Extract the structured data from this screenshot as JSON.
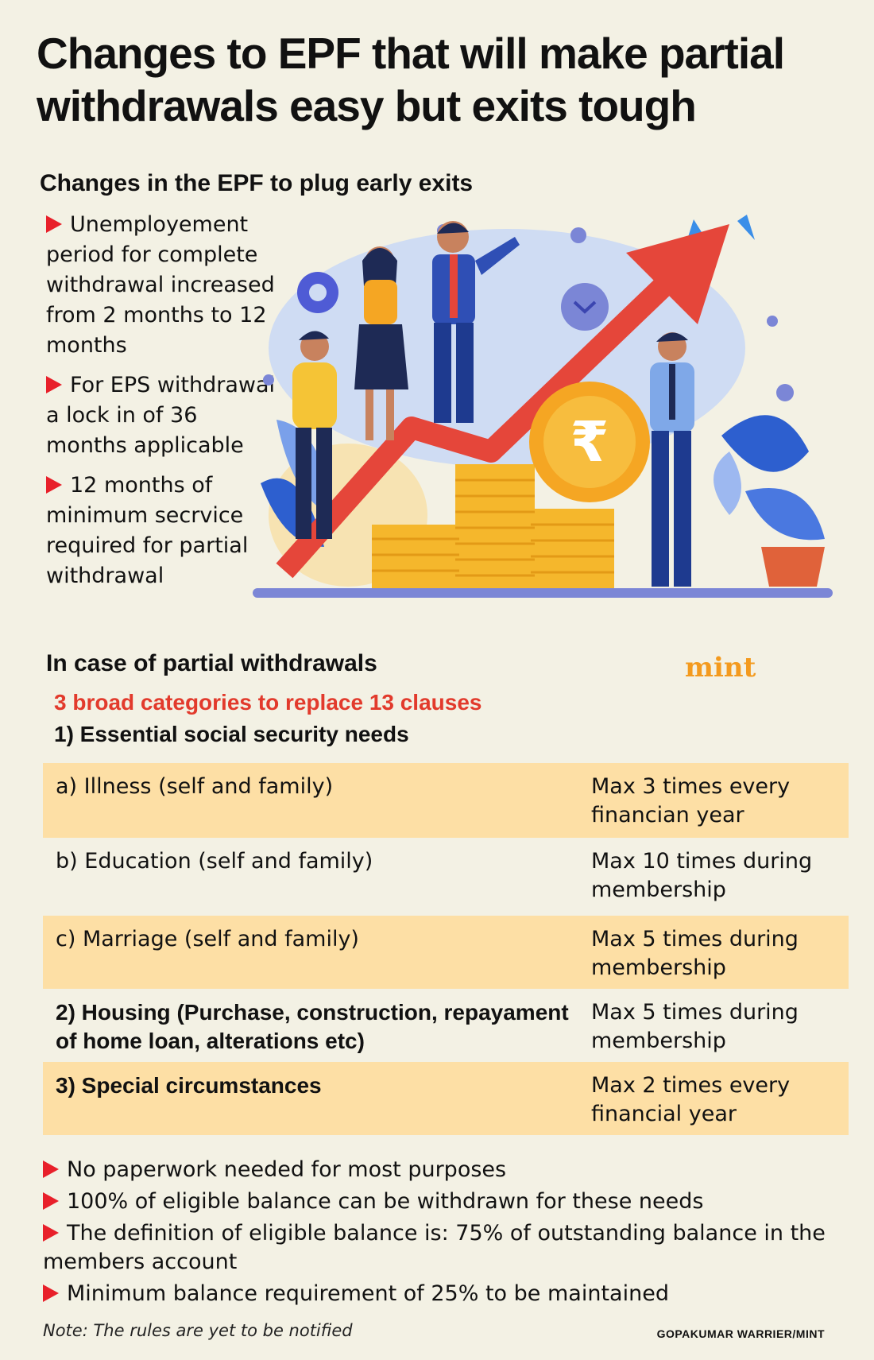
{
  "title": "Changes to EPF that will make partial withdrawals easy but exits tough",
  "section1": {
    "heading": "Changes in the EPF to plug early exits",
    "bullets": [
      "Unemployement period for complete withdrawal increased from 2 months to 12 months",
      "For EPS withdrawal a lock in of 36 months applicable",
      "12 months of minimum secrvice required for partial withdrawal"
    ]
  },
  "illustration": {
    "currency_symbol": "₹"
  },
  "logo": "mint",
  "section2": {
    "heading": "In case of partial withdrawals",
    "subheading": "3 broad categories to replace 13 clauses",
    "category1": "1) Essential social security needs",
    "rows": [
      {
        "label": "a) Illness (self and family)",
        "limit": "Max 3 times every financian year"
      },
      {
        "label": "b) Education (self and family)",
        "limit": "Max 10 times during membership"
      },
      {
        "label": "c) Marriage (self and family)",
        "limit": "Max 5 times during membership"
      },
      {
        "label": "2) Housing (Purchase, construction, repayament of home loan, alterations etc)",
        "limit": "Max 5 times during membership"
      },
      {
        "label": "3) Special circumstances",
        "limit": "Max 2 times every financial year"
      }
    ]
  },
  "bottom_bullets": [
    "No paperwork needed for most purposes",
    "100% of eligible balance can be withdrawn for these needs",
    "The definition of eligible balance is: 75% of outstanding balance in the members account",
    "Minimum balance requirement of 25% to be maintained"
  ],
  "note": "Note: The rules are yet to be notified",
  "credit": "GOPAKUMAR WARRIER/MINT",
  "colors": {
    "background": "#f3f1e4",
    "accent_red": "#e8202a",
    "table_shade": "#fddfa5",
    "logo_orange": "#f39a1e"
  }
}
